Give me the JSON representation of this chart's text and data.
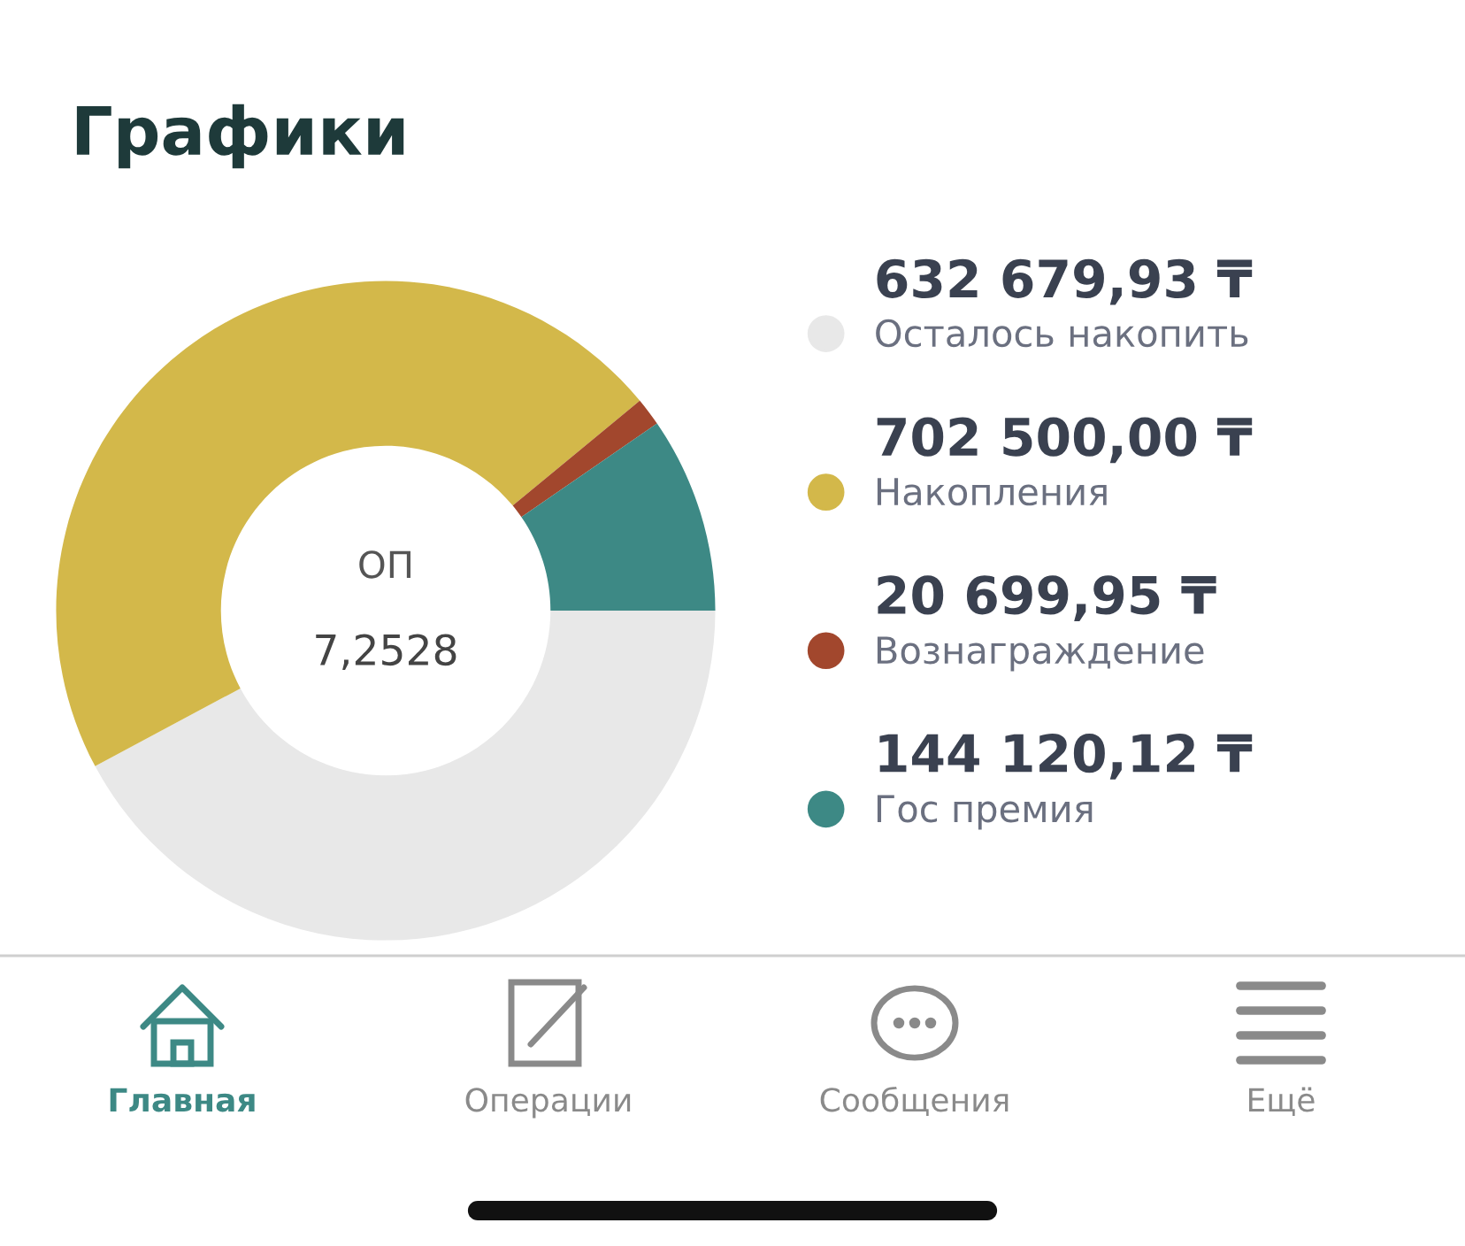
{
  "chart_data": {
    "type": "donut",
    "title": "Графики",
    "categories": [
      "Осталось накопить",
      "Накопления",
      "Вознаграждение",
      "Гос премия"
    ],
    "values": [
      632679.93,
      702500.0,
      20699.95,
      144120.12
    ],
    "colors": [
      "#e8e8e8",
      "#d3b84a",
      "#a2472d",
      "#3d8985"
    ],
    "value_labels": [
      "632 679,93 ₸",
      "702 500,00 ₸",
      "20 699,95 ₸",
      "144 120,12 ₸"
    ],
    "legend": "right",
    "annotations": [
      "ОП",
      "7,2528",
      "Главная",
      "Операции",
      "Сообщения",
      "Ещё"
    ]
  }
}
